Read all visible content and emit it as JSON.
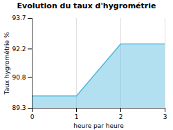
{
  "chart_data": {
    "type": "area",
    "title": "Evolution du taux d'hygrométrie",
    "xlabel": "heure par heure",
    "ylabel": "Taux hygrométrie %",
    "x": [
      0,
      1,
      2,
      3
    ],
    "values": [
      89.9,
      89.9,
      92.45,
      92.45
    ],
    "color": "#55bbdd",
    "xlim": [
      0,
      3
    ],
    "ylim": [
      89.3,
      93.7
    ],
    "xticks": [
      0,
      1,
      2,
      3
    ],
    "yticks": [
      89.3,
      90.8,
      92.2,
      93.7
    ],
    "grid": "x"
  }
}
